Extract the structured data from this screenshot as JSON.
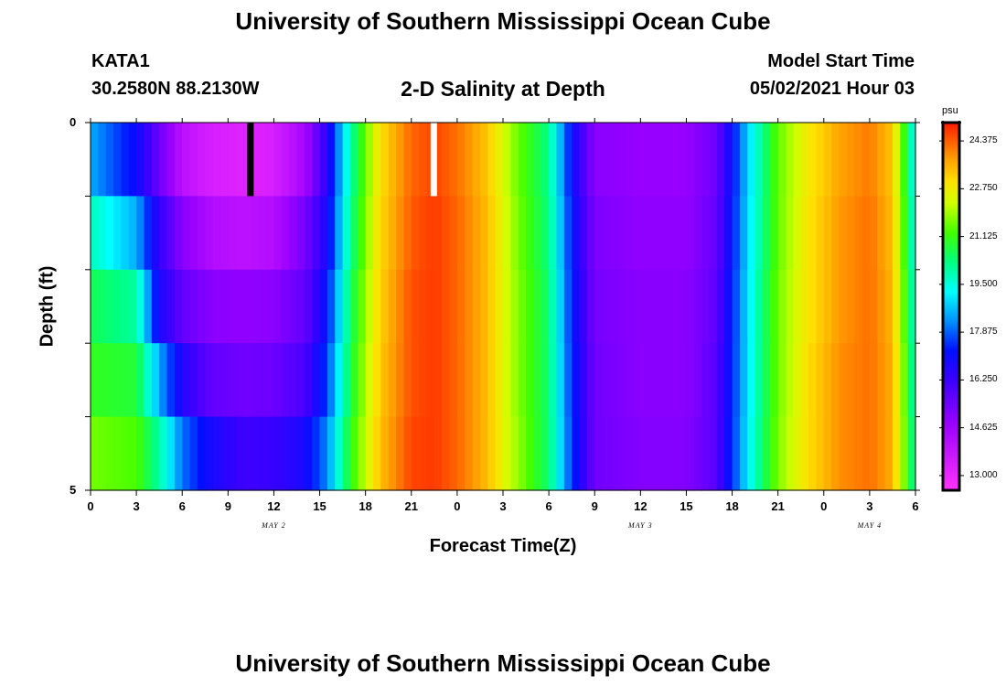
{
  "header": {
    "title_top": "University of Southern Mississippi Ocean Cube",
    "title_bottom": "University of Southern Mississippi Ocean Cube",
    "station": "KATA1",
    "coords": "30.2580N  88.2130W",
    "plot_title": "2-D Salinity at Depth",
    "model_start_label": "Model Start Time",
    "model_start_value": "05/02/2021 Hour 03"
  },
  "chart_data": {
    "type": "heatmap",
    "title": "2-D Salinity at Depth",
    "xlabel": "Forecast Time(Z)",
    "ylabel": "Depth (ft)",
    "x_hours_range": [
      0,
      54
    ],
    "y_range": [
      0,
      5
    ],
    "y_tick_labels": [
      "0",
      "5"
    ],
    "x_tick_labels": [
      "0",
      "3",
      "6",
      "9",
      "12",
      "15",
      "18",
      "21",
      "0",
      "3",
      "6",
      "9",
      "12",
      "15",
      "18",
      "21",
      "0",
      "3",
      "6"
    ],
    "date_labels": [
      {
        "text": "MAY 2",
        "hour": 12
      },
      {
        "text": "MAY 3",
        "hour": 36
      },
      {
        "text": "MAY 4",
        "hour": 51
      }
    ],
    "depth_layers": 5,
    "time_markers": [
      {
        "hour": 10.5,
        "color": "#000000"
      },
      {
        "hour": 22.5,
        "color": "#ffffff"
      }
    ],
    "colorbar": {
      "unit": "psu",
      "min": 12.5,
      "max": 25.0,
      "tick_labels": [
        "24.375",
        "22.750",
        "21.125",
        "19.500",
        "17.875",
        "16.250",
        "14.625",
        "13.000"
      ],
      "tick_values": [
        24.375,
        22.75,
        21.125,
        19.5,
        17.875,
        16.25,
        14.625,
        13.0
      ]
    },
    "salinity_profile_hours": [
      0,
      3,
      4.5,
      6,
      8,
      10,
      12,
      14,
      15.5,
      17,
      19,
      21,
      22.5,
      24,
      26,
      28,
      30,
      31.5,
      33,
      36,
      39,
      41,
      43,
      45,
      47,
      49,
      51,
      52.5,
      54
    ],
    "salinity_by_depth": [
      [
        18.5,
        17.0,
        15.5,
        14.0,
        13.4,
        13.2,
        13.4,
        14.5,
        16.5,
        20.0,
        23.0,
        24.3,
        24.6,
        24.2,
        23.3,
        21.5,
        20.2,
        17.0,
        15.0,
        14.8,
        14.8,
        15.5,
        18.8,
        21.5,
        22.8,
        23.7,
        24.1,
        23.3,
        19.0
      ],
      [
        19.8,
        18.5,
        16.4,
        15.0,
        14.2,
        14.0,
        14.2,
        15.3,
        16.8,
        20.2,
        23.1,
        24.4,
        24.7,
        24.3,
        23.4,
        21.6,
        20.3,
        17.2,
        15.2,
        14.9,
        14.9,
        15.6,
        18.9,
        21.5,
        22.9,
        23.8,
        24.2,
        23.4,
        19.2
      ],
      [
        20.6,
        20.0,
        16.8,
        15.6,
        15.0,
        14.9,
        15.0,
        15.6,
        17.2,
        20.5,
        23.2,
        24.5,
        24.7,
        24.3,
        23.4,
        21.7,
        20.4,
        17.3,
        15.3,
        15.0,
        15.0,
        15.7,
        19.0,
        21.6,
        22.9,
        23.8,
        24.2,
        23.5,
        19.4
      ],
      [
        21.0,
        20.8,
        18.5,
        16.6,
        15.6,
        15.4,
        15.5,
        16.0,
        17.6,
        20.7,
        23.3,
        24.5,
        24.7,
        24.3,
        23.4,
        21.7,
        20.4,
        17.4,
        15.4,
        15.0,
        15.0,
        15.8,
        19.0,
        21.6,
        23.0,
        23.9,
        24.2,
        23.6,
        19.6
      ],
      [
        21.6,
        21.3,
        20.0,
        18.0,
        16.8,
        16.2,
        16.3,
        16.8,
        18.2,
        21.0,
        23.4,
        24.6,
        24.7,
        24.3,
        23.4,
        21.8,
        20.4,
        17.5,
        15.4,
        15.1,
        15.1,
        15.8,
        19.1,
        21.7,
        23.0,
        23.9,
        24.2,
        23.6,
        19.8
      ]
    ],
    "surface_layer_shift": [
      [
        0,
        0
      ],
      [
        3,
        0
      ],
      [
        4.5,
        -0.6
      ]
    ]
  }
}
